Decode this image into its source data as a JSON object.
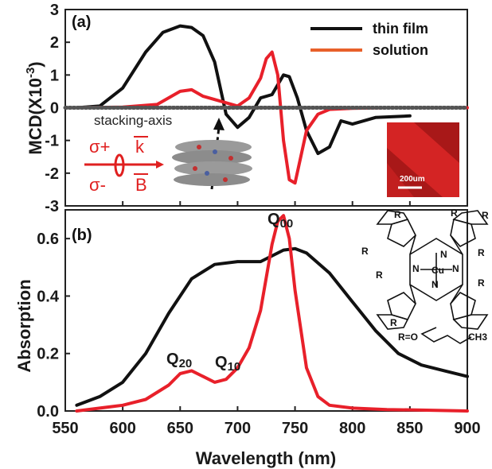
{
  "colors": {
    "thin_film": "#111111",
    "solution": "#e8202a",
    "axis": "#222222"
  },
  "chart_data": [
    {
      "panel": "(a)",
      "type": "line",
      "ylabel": "MCD(X10",
      "ylabel_exp": "-3",
      "ylabel_close": ")",
      "xlim": [
        550,
        900
      ],
      "ylim": [
        -3,
        3
      ],
      "yticks": [
        "-3",
        "-2",
        "-1",
        "0",
        "1",
        "2",
        "3"
      ],
      "legend_position": "top-right",
      "series": [
        {
          "name": "thin film",
          "color": "#111111",
          "x": [
            560,
            580,
            600,
            620,
            635,
            650,
            660,
            670,
            680,
            690,
            700,
            710,
            720,
            730,
            740,
            745,
            752,
            760,
            770,
            780,
            790,
            800,
            820,
            850
          ],
          "y": [
            0.0,
            0.05,
            0.6,
            1.7,
            2.3,
            2.5,
            2.45,
            2.2,
            1.4,
            -0.2,
            -0.6,
            -0.3,
            0.3,
            0.4,
            1.0,
            0.95,
            0.3,
            -0.7,
            -1.4,
            -1.2,
            -0.4,
            -0.5,
            -0.3,
            -0.25
          ]
        },
        {
          "name": "solution",
          "color": "#e8202a",
          "x": [
            560,
            600,
            630,
            650,
            660,
            670,
            680,
            690,
            700,
            710,
            720,
            725,
            730,
            735,
            740,
            745,
            750,
            755,
            760,
            770,
            780,
            800,
            830,
            860,
            900
          ],
          "y": [
            0.0,
            0.02,
            0.1,
            0.5,
            0.55,
            0.35,
            0.25,
            0.15,
            0.05,
            0.3,
            0.9,
            1.5,
            1.7,
            1.0,
            -1.0,
            -2.2,
            -2.3,
            -1.5,
            -0.7,
            -0.2,
            -0.05,
            -0.02,
            0.0,
            0.0,
            0.0
          ]
        },
        {
          "name": "",
          "color": "#555555",
          "dotted": true,
          "x": [
            550,
            900
          ],
          "y": [
            0,
            0
          ]
        }
      ]
    },
    {
      "panel": "(b)",
      "type": "line",
      "ylabel": "Absorption",
      "xlabel": "Wavelength (nm)",
      "xlim": [
        550,
        900
      ],
      "ylim": [
        0,
        0.7
      ],
      "xticks": [
        "550",
        "600",
        "650",
        "700",
        "750",
        "800",
        "850",
        "900"
      ],
      "yticks": [
        "0.0",
        "0.2",
        "0.4",
        "0.6"
      ],
      "series": [
        {
          "name": "thin film",
          "color": "#111111",
          "x": [
            560,
            580,
            600,
            620,
            640,
            660,
            680,
            700,
            720,
            740,
            750,
            760,
            780,
            800,
            820,
            840,
            860,
            880,
            900
          ],
          "y": [
            0.02,
            0.05,
            0.1,
            0.2,
            0.34,
            0.46,
            0.51,
            0.52,
            0.52,
            0.56,
            0.565,
            0.55,
            0.48,
            0.38,
            0.28,
            0.2,
            0.16,
            0.14,
            0.12
          ]
        },
        {
          "name": "solution",
          "color": "#e8202a",
          "x": [
            560,
            580,
            600,
            620,
            640,
            650,
            660,
            670,
            680,
            690,
            700,
            710,
            720,
            730,
            735,
            740,
            745,
            750,
            760,
            770,
            780,
            800,
            830,
            860,
            900
          ],
          "y": [
            0.0,
            0.01,
            0.02,
            0.04,
            0.09,
            0.13,
            0.14,
            0.12,
            0.1,
            0.11,
            0.15,
            0.22,
            0.35,
            0.58,
            0.66,
            0.68,
            0.6,
            0.42,
            0.15,
            0.05,
            0.02,
            0.01,
            0.005,
            0.003,
            0.0
          ]
        }
      ],
      "annotations": {
        "q20": "Q20",
        "q10": "Q10",
        "q00": "Q00"
      }
    }
  ],
  "legend": {
    "thin_film": "thin film",
    "solution": "solution"
  },
  "inset_a": {
    "stacking_label": "stacking-axis",
    "sigma_plus": "σ+",
    "sigma_minus": "σ-",
    "k_label": "k",
    "b_label": "B",
    "scale_bar": "200um"
  },
  "molecule": {
    "r_label": "R",
    "cu_label": "Cu",
    "n_label": "N",
    "substituent_prefix": "R=O",
    "substituent_suffix": "CH3"
  }
}
